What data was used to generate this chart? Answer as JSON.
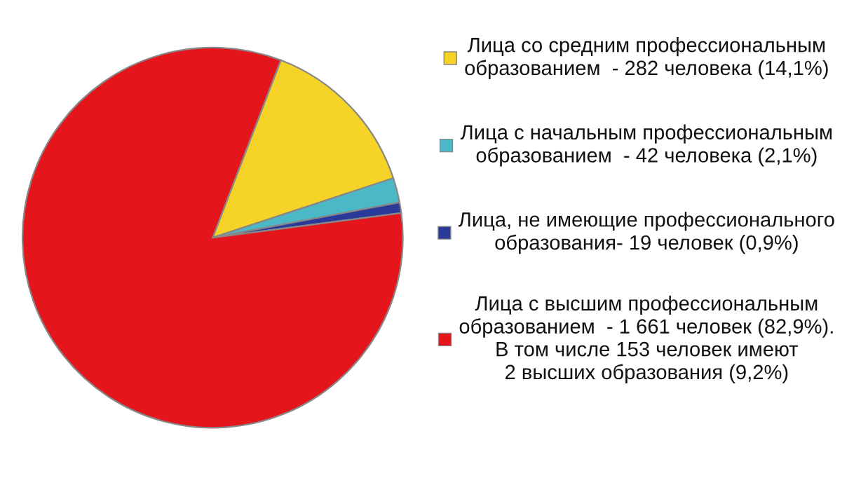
{
  "chart_data": {
    "type": "pie",
    "categories": [
      "Лица со средним профессиональным\nобразованием  - 282 человека (14,1%)",
      "Лица с начальным профессиональным\nобразованием  - 42 человека (2,1%)",
      "Лица, не имеющие профессионального\nобразования- 19 человек (0,9%)",
      "Лица с высшим профессиональным\nобразованием  - 1 661 человек (82,9%).\nВ том числе 153 человек имеют\n2 высших образования (9,2%)"
    ],
    "values": [
      14.1,
      2.1,
      0.9,
      82.9
    ],
    "colors": [
      "#f5d327",
      "#4bb8c8",
      "#2a3a9a",
      "#e4161c"
    ],
    "legend": "right"
  }
}
